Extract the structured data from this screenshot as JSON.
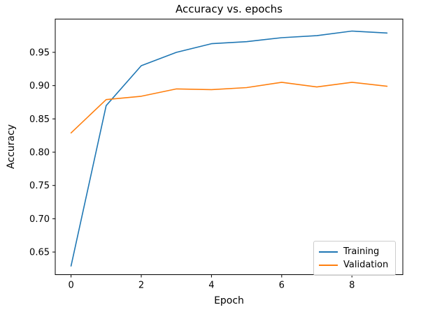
{
  "chart_data": {
    "type": "line",
    "title": "Accuracy vs. epochs",
    "xlabel": "Epoch",
    "ylabel": "Accuracy",
    "x": [
      0,
      1,
      2,
      3,
      4,
      5,
      6,
      7,
      8,
      9
    ],
    "series": [
      {
        "name": "Training",
        "color": "#1f77b4",
        "values": [
          0.629,
          0.87,
          0.93,
          0.95,
          0.963,
          0.966,
          0.972,
          0.975,
          0.982,
          0.979
        ]
      },
      {
        "name": "Validation",
        "color": "#ff7f0e",
        "values": [
          0.829,
          0.879,
          0.884,
          0.895,
          0.894,
          0.897,
          0.905,
          0.898,
          0.905,
          0.899
        ]
      }
    ],
    "xticks": [
      0,
      2,
      4,
      6,
      8
    ],
    "xtick_labels": [
      "0",
      "2",
      "4",
      "6",
      "8"
    ],
    "yticks": [
      0.65,
      0.7,
      0.75,
      0.8,
      0.85,
      0.9,
      0.95
    ],
    "ytick_labels": [
      "0.65",
      "0.70",
      "0.75",
      "0.80",
      "0.85",
      "0.90",
      "0.95"
    ],
    "xlim": [
      -0.45,
      9.45
    ],
    "ylim": [
      0.616,
      1.0
    ],
    "grid": false,
    "legend_position": "lower right"
  }
}
